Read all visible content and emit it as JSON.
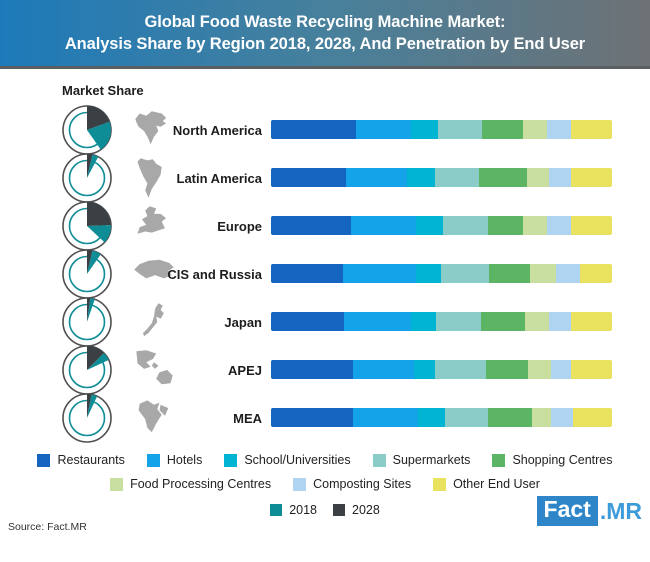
{
  "banner": {
    "line1": "Global Food Waste Recycling Machine Market:",
    "line2": "Analysis Share by Region 2018, 2028, And Penetration by End User"
  },
  "labels": {
    "market_share": "Market Share"
  },
  "chart_data": {
    "type": "bar",
    "subtype": "horizontal-stacked-percent",
    "title": "Global Food Waste Recycling Machine Market: Analysis Share by Region 2018, 2028, And Penetration by End User",
    "categories": [
      "North America",
      "Latin America",
      "Europe",
      "CIS and Russia",
      "Japan",
      "APEJ",
      "MEA"
    ],
    "series": [
      {
        "name": "Restaurants",
        "color": "#1565c0",
        "values": [
          25,
          22,
          23.5,
          21,
          21.5,
          24,
          24
        ]
      },
      {
        "name": "Hotels",
        "color": "#14a3e8",
        "values": [
          16,
          18,
          19,
          21.5,
          19.5,
          18,
          19
        ]
      },
      {
        "name": "School/Universities",
        "color": "#00b4d4",
        "values": [
          8,
          8,
          8,
          7.5,
          7.5,
          6,
          8
        ]
      },
      {
        "name": "Supermarkets",
        "color": "#8bccc9",
        "values": [
          13,
          13,
          13,
          14,
          13,
          15,
          12.5
        ]
      },
      {
        "name": "Shopping Centres",
        "color": "#5cb564",
        "values": [
          12,
          14,
          10.5,
          12,
          13,
          12.5,
          13
        ]
      },
      {
        "name": "Food Processing Centres",
        "color": "#c9dfa0",
        "values": [
          7,
          6.5,
          7,
          7.5,
          7,
          6.5,
          5.5
        ]
      },
      {
        "name": "Composting Sites",
        "color": "#aed4f2",
        "values": [
          7,
          6.5,
          7,
          7,
          6.5,
          6,
          6.5
        ]
      },
      {
        "name": "Other End User",
        "color": "#e9e25e",
        "values": [
          12,
          12,
          12,
          9.5,
          12,
          12,
          11.5
        ]
      }
    ],
    "legend_rows": [
      [
        0,
        1,
        2,
        3,
        4
      ],
      [
        5,
        6,
        7
      ]
    ],
    "legend_position": "bottom",
    "market_share_gauges": {
      "colors": {
        "y2018": "#0f8d96",
        "y2028": "#3b4044"
      },
      "regions": [
        {
          "region": "North America",
          "deg_2028": [
            0,
            70
          ],
          "deg_2018": [
            70,
            145
          ]
        },
        {
          "region": "Latin America",
          "deg_2028": [
            0,
            13
          ],
          "deg_2018": [
            13,
            28
          ]
        },
        {
          "region": "Europe",
          "deg_2028": [
            0,
            88
          ],
          "deg_2018": [
            88,
            133
          ]
        },
        {
          "region": "CIS and Russia",
          "deg_2028": [
            0,
            13
          ],
          "deg_2018": [
            13,
            35
          ]
        },
        {
          "region": "Japan",
          "deg_2028": [
            0,
            8
          ],
          "deg_2018": [
            8,
            19
          ]
        },
        {
          "region": "APEJ",
          "deg_2028": [
            0,
            45
          ],
          "deg_2018": [
            45,
            65
          ]
        },
        {
          "region": "MEA",
          "deg_2028": [
            0,
            11
          ],
          "deg_2018": [
            11,
            25
          ]
        }
      ]
    },
    "year_legend": [
      {
        "label": "2018",
        "color": "#0f8d96"
      },
      {
        "label": "2028",
        "color": "#3b4044"
      }
    ]
  },
  "footer": {
    "source": "Source: Fact.MR",
    "logo_fact": "Fact",
    "logo_mr": ".MR"
  }
}
